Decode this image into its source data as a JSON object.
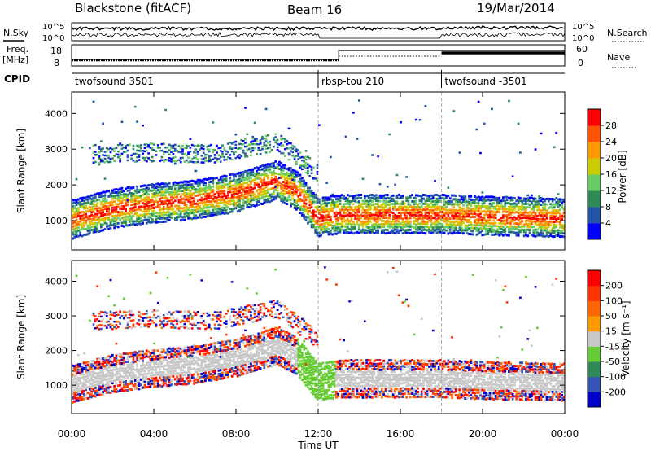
{
  "header": {
    "station": "Blackstone (fitACF)",
    "beam": "Beam 16",
    "date": "19/Mar/2014"
  },
  "strips": {
    "nsky_label": "N.Sky",
    "nsky_top": "10^5",
    "nsky_bottom": "10^0",
    "nsearch_label": "N.Search",
    "nsearch_top": "10^5",
    "nsearch_bottom": "10^0",
    "freq_label": "Freq.",
    "freq_unit": "[MHz]",
    "freq_top": "18",
    "freq_bottom": "8",
    "nave_label": "Nave",
    "nave_top": "60",
    "nave_bottom": "0",
    "cpid_label": "CPID",
    "cpid_segments": [
      {
        "label": "twofsound 3501",
        "start_hour": 0
      },
      {
        "label": "rbsp-tou 210",
        "start_hour": 12
      },
      {
        "label": "twofsound -3501",
        "start_hour": 18
      }
    ]
  },
  "axes": {
    "xlabel": "Time UT",
    "xticks": [
      "00:00",
      "04:00",
      "08:00",
      "12:00",
      "16:00",
      "20:00",
      "00:00"
    ],
    "xrange_hours": [
      0,
      24
    ],
    "ylabel": "Slant Range [km]",
    "yticks": [
      "1000",
      "2000",
      "3000",
      "4000"
    ],
    "yrange_km": [
      180,
      4600
    ]
  },
  "power_scale": {
    "label": "Power [dB]",
    "ticks": [
      "4",
      "8",
      "12",
      "16",
      "20",
      "24",
      "28"
    ],
    "colors": [
      "#0000ff",
      "#2255aa",
      "#2e8b57",
      "#66cc66",
      "#cccc00",
      "#ff9900",
      "#ff5500",
      "#ff0000"
    ]
  },
  "velocity_scale": {
    "label": "Velocity [m s⁻¹]",
    "ticks": [
      "200",
      "100",
      "50",
      "15",
      "-15",
      "-50",
      "-100",
      "-200"
    ],
    "colors": [
      "#0000cc",
      "#3355bb",
      "#2e8b57",
      "#66cc33",
      "#c8c8c8",
      "#ff9900",
      "#ff6600",
      "#ff3300",
      "#ff0000"
    ]
  },
  "chart_data": {
    "type": "heatmap",
    "title": "Blackstone (fitACF)",
    "xlabel": "Time UT",
    "ylabel": "Slant Range [km]",
    "x_range_hours": [
      0,
      24
    ],
    "y_range_km": [
      180,
      4600
    ],
    "panels": [
      "Power [dB]",
      "Velocity [m s⁻¹]"
    ],
    "main_echo_band_km": [
      [
        0,
        1000
      ],
      [
        2,
        1300
      ],
      [
        4,
        1450
      ],
      [
        6,
        1550
      ],
      [
        8,
        1750
      ],
      [
        10,
        2100
      ],
      [
        11,
        1800
      ],
      [
        12,
        1050
      ],
      [
        13,
        1150
      ],
      [
        16,
        1150
      ],
      [
        18,
        1150
      ],
      [
        20,
        1100
      ],
      [
        24,
        1050
      ]
    ],
    "upper_echo_band_km": [
      [
        1,
        2850
      ],
      [
        4,
        2900
      ],
      [
        7,
        2850
      ],
      [
        10,
        3200
      ],
      [
        12,
        2300
      ]
    ]
  }
}
